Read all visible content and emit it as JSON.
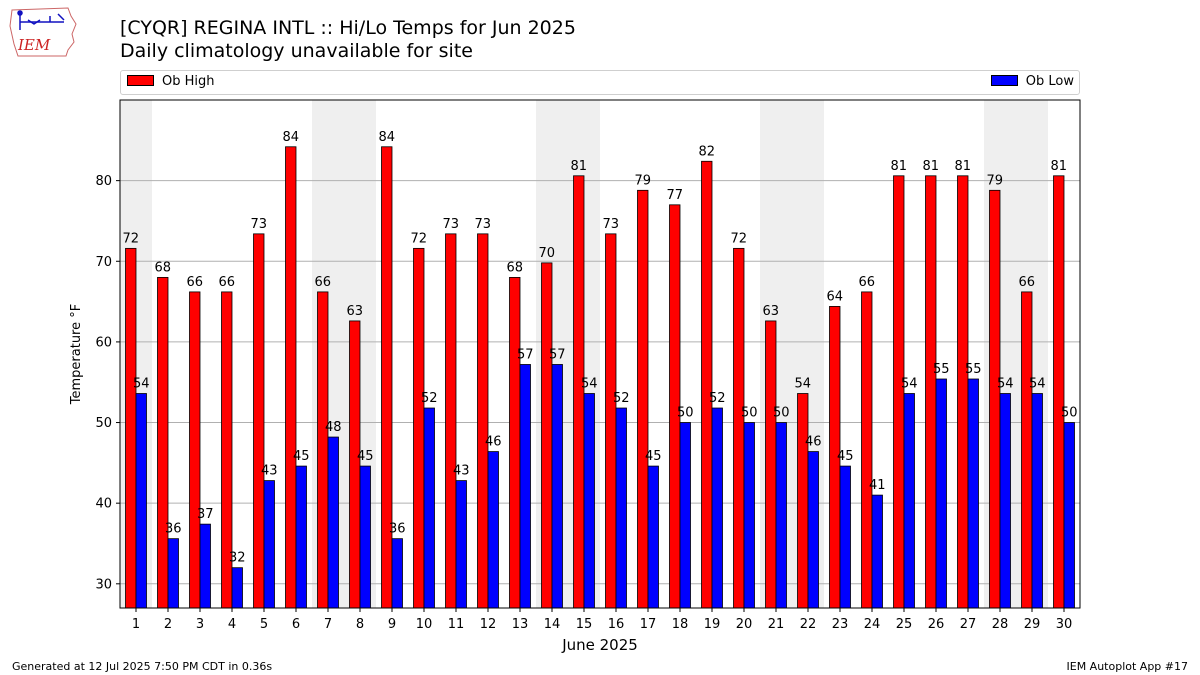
{
  "logo_text": "IEM",
  "title": "[CYQR] REGINA INTL :: Hi/Lo Temps for Jun 2025",
  "subtitle": "Daily climatology unavailable for site",
  "footer_left": "Generated at 12 Jul 2025 7:50 PM CDT in 0.36s",
  "footer_right": "IEM Autoplot App #17",
  "colors": {
    "high": "#ff0000",
    "low": "#0000ff",
    "shade": "#efefef",
    "grid": "#b0b0b0"
  },
  "chart_data": {
    "type": "bar",
    "xlabel": "June 2025",
    "ylabel": "Temperature °F",
    "ylim": [
      27,
      90
    ],
    "yticks": [
      30,
      40,
      50,
      60,
      70,
      80
    ],
    "categories": [
      "1",
      "2",
      "3",
      "4",
      "5",
      "6",
      "7",
      "8",
      "9",
      "10",
      "11",
      "12",
      "13",
      "14",
      "15",
      "16",
      "17",
      "18",
      "19",
      "20",
      "21",
      "22",
      "23",
      "24",
      "25",
      "26",
      "27",
      "28",
      "29",
      "30"
    ],
    "weekend_days": [
      1,
      7,
      8,
      14,
      15,
      21,
      22,
      28,
      29
    ],
    "series": [
      {
        "name": "Ob High",
        "color": "#ff0000",
        "values": [
          71.6,
          68.0,
          66.2,
          66.2,
          73.4,
          84.2,
          66.2,
          62.6,
          84.2,
          71.6,
          73.4,
          73.4,
          68.0,
          69.8,
          80.6,
          73.4,
          78.8,
          77.0,
          82.4,
          71.6,
          62.6,
          53.6,
          64.4,
          66.2,
          80.6,
          80.6,
          80.6,
          78.8,
          66.2,
          80.6
        ],
        "labels": [
          72,
          68,
          66,
          66,
          73,
          84,
          66,
          63,
          84,
          72,
          73,
          73,
          68,
          70,
          81,
          73,
          79,
          77,
          82,
          72,
          63,
          54,
          64,
          66,
          81,
          81,
          81,
          79,
          66,
          81
        ]
      },
      {
        "name": "Ob Low",
        "color": "#0000ff",
        "values": [
          53.6,
          35.6,
          37.4,
          32.0,
          42.8,
          44.6,
          48.2,
          44.6,
          35.6,
          51.8,
          42.8,
          46.4,
          57.2,
          57.2,
          53.6,
          51.8,
          44.6,
          50.0,
          51.8,
          50.0,
          50.0,
          46.4,
          44.6,
          41.0,
          53.6,
          55.4,
          55.4,
          53.6,
          53.6,
          50.0
        ],
        "labels": [
          54,
          36,
          37,
          32,
          43,
          45,
          48,
          45,
          36,
          52,
          43,
          46,
          57,
          57,
          54,
          52,
          45,
          50,
          52,
          50,
          50,
          46,
          45,
          41,
          54,
          55,
          55,
          54,
          54,
          50
        ]
      }
    ]
  }
}
